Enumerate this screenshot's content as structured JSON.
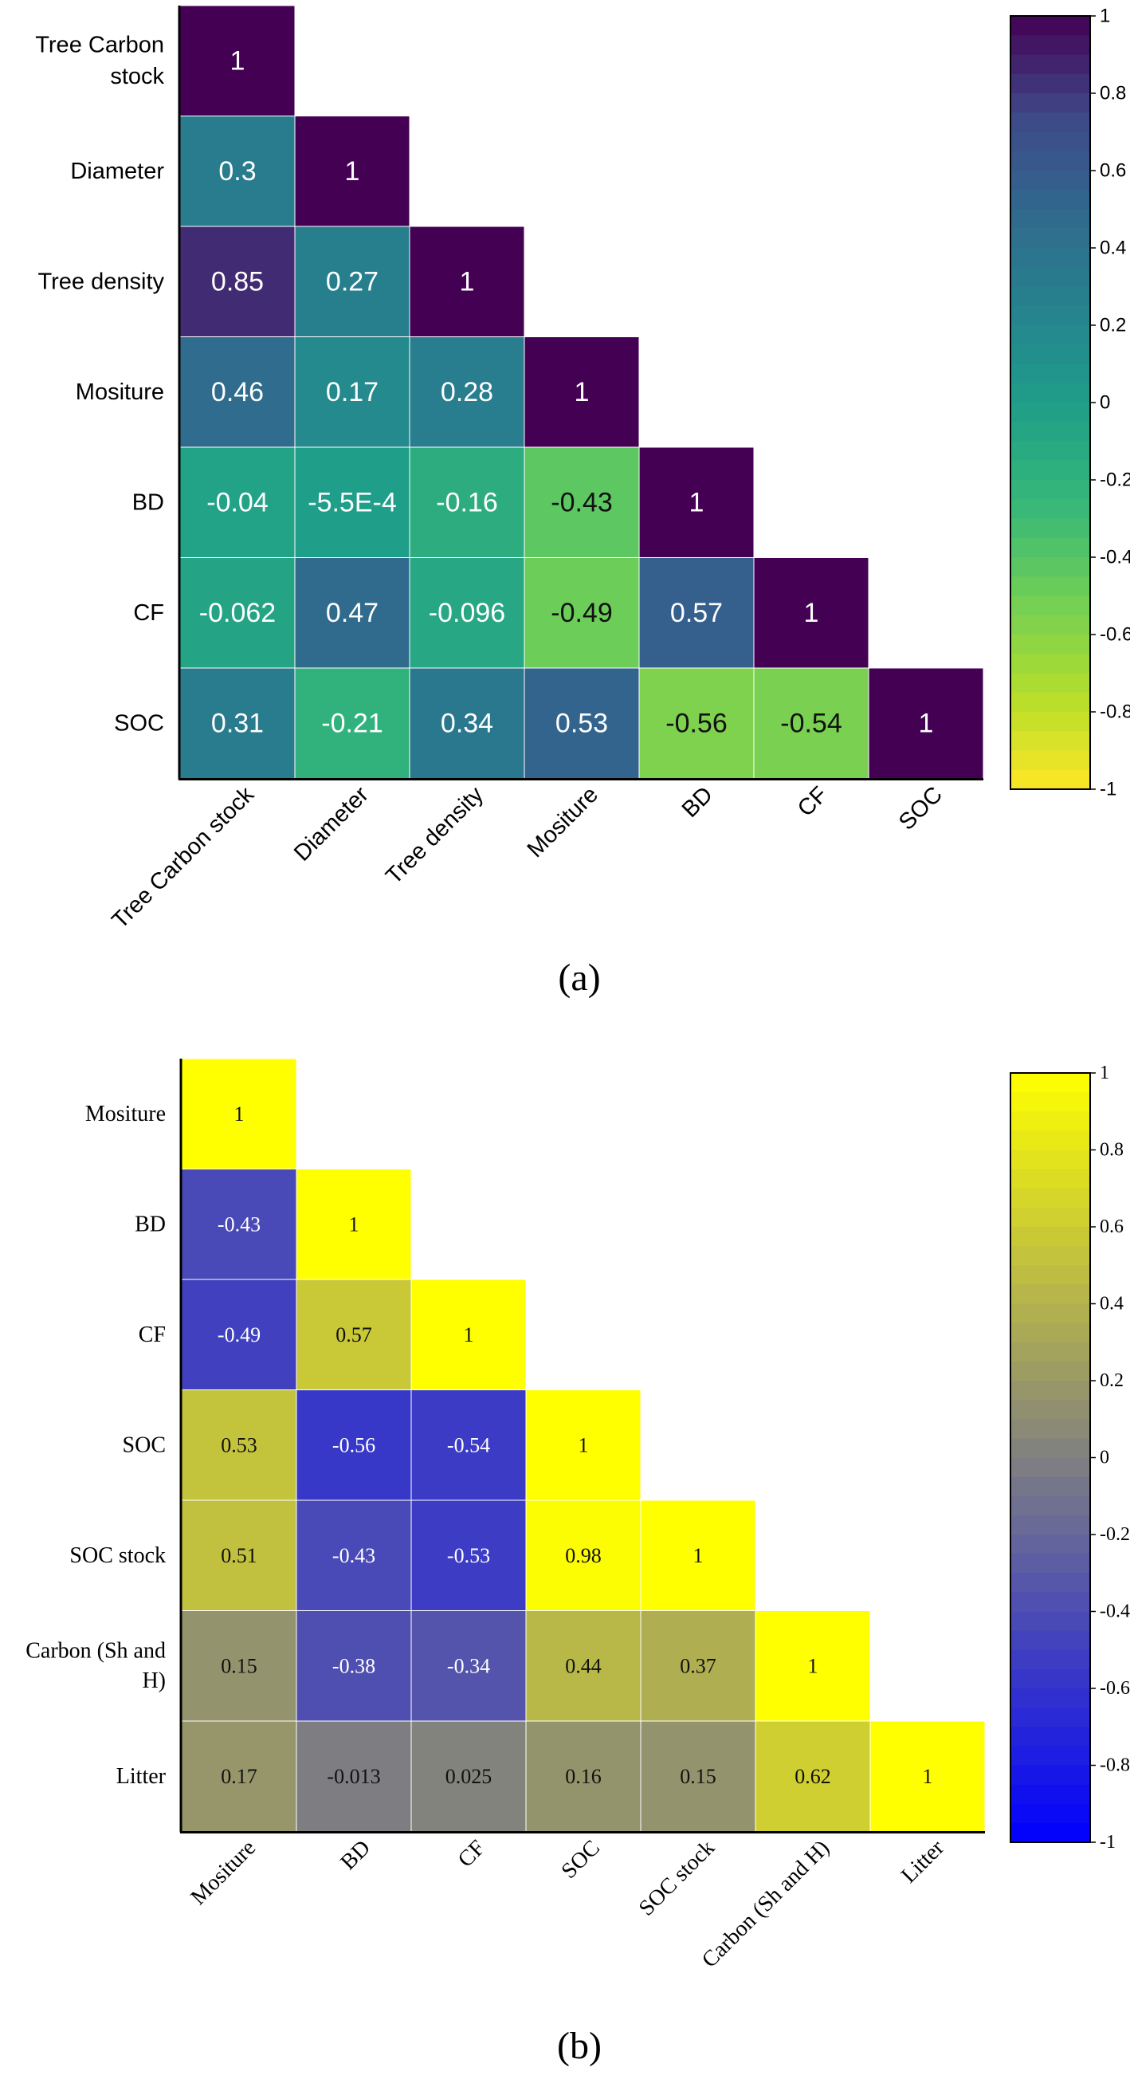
{
  "chart_data": [
    {
      "type": "heatmap",
      "panel_label": "(a)",
      "title": "",
      "font": "sans",
      "colormap": "viridis",
      "labels": [
        "Tree Carbon stock",
        "Diameter",
        "Tree density",
        "Mositure",
        "BD",
        "CF",
        "SOC"
      ],
      "y_labels": [
        [
          "Tree Carbon",
          "stock"
        ],
        [
          "Diameter"
        ],
        [
          "Tree density"
        ],
        [
          "Mositure"
        ],
        [
          "BD"
        ],
        [
          "CF"
        ],
        [
          "SOC"
        ]
      ],
      "matrix": [
        [
          1
        ],
        [
          0.3,
          1
        ],
        [
          0.85,
          0.27,
          1
        ],
        [
          0.46,
          0.17,
          0.28,
          1
        ],
        [
          -0.04,
          -0.00055,
          -0.16,
          -0.43,
          1
        ],
        [
          -0.062,
          0.47,
          -0.096,
          -0.49,
          0.57,
          1
        ],
        [
          0.31,
          -0.21,
          0.34,
          0.53,
          -0.56,
          -0.54,
          1
        ]
      ],
      "cell_text": [
        [
          "1"
        ],
        [
          "0.3",
          "1"
        ],
        [
          "0.85",
          "0.27",
          "1"
        ],
        [
          "0.46",
          "0.17",
          "0.28",
          "1"
        ],
        [
          "-0.04",
          "-5.5E-4",
          "-0.16",
          "-0.43",
          "1"
        ],
        [
          "-0.062",
          "0.47",
          "-0.096",
          "-0.49",
          "0.57",
          "1"
        ],
        [
          "0.31",
          "-0.21",
          "0.34",
          "0.53",
          "-0.56",
          "-0.54",
          "1"
        ]
      ],
      "colorbar": {
        "range": [
          -1,
          1
        ],
        "ticks": [
          "1",
          "0.8",
          "0.6",
          "0.4",
          "0.2",
          "0",
          "-0.2",
          "-0.4",
          "-0.6",
          "-0.8",
          "-1"
        ]
      }
    },
    {
      "type": "heatmap",
      "panel_label": "(b)",
      "title": "",
      "font": "serif",
      "colormap": "blue-gray-yellow",
      "labels": [
        "Mositure",
        "BD",
        "CF",
        "SOC",
        "SOC stock",
        "Carbon (Sh and H)",
        "Litter"
      ],
      "y_labels": [
        [
          "Mositure"
        ],
        [
          "BD"
        ],
        [
          "CF"
        ],
        [
          "SOC"
        ],
        [
          "SOC stock"
        ],
        [
          "Carbon (Sh and",
          "H)"
        ],
        [
          "Litter"
        ]
      ],
      "matrix": [
        [
          1
        ],
        [
          -0.43,
          1
        ],
        [
          -0.49,
          0.57,
          1
        ],
        [
          0.53,
          -0.56,
          -0.54,
          1
        ],
        [
          0.51,
          -0.43,
          -0.53,
          0.98,
          1
        ],
        [
          0.15,
          -0.38,
          -0.34,
          0.44,
          0.37,
          1
        ],
        [
          0.17,
          -0.013,
          0.025,
          0.16,
          0.15,
          0.62,
          1
        ]
      ],
      "cell_text": [
        [
          "1"
        ],
        [
          "-0.43",
          "1"
        ],
        [
          "-0.49",
          "0.57",
          "1"
        ],
        [
          "0.53",
          "-0.56",
          "-0.54",
          "1"
        ],
        [
          "0.51",
          "-0.43",
          "-0.53",
          "0.98",
          "1"
        ],
        [
          "0.15",
          "-0.38",
          "-0.34",
          "0.44",
          "0.37",
          "1"
        ],
        [
          "0.17",
          "-0.013",
          "0.025",
          "0.16",
          "0.15",
          "0.62",
          "1"
        ]
      ],
      "colorbar": {
        "range": [
          -1,
          1
        ],
        "ticks": [
          "1",
          "0.8",
          "0.6",
          "0.4",
          "0.2",
          "0",
          "-0.2",
          "-0.4",
          "-0.6",
          "-0.8",
          "-1"
        ]
      }
    }
  ]
}
